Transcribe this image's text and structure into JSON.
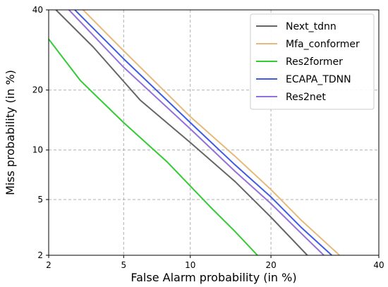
{
  "chart_data": {
    "type": "line",
    "title": "",
    "xlabel": "False Alarm probability (in %)",
    "ylabel": "Miss probability (in %)",
    "x_scale": "probit",
    "y_scale": "probit",
    "xlim": [
      2,
      40
    ],
    "ylim": [
      2,
      40
    ],
    "x_ticks": [
      2,
      5,
      10,
      20,
      40
    ],
    "y_ticks": [
      2,
      5,
      10,
      20,
      40
    ],
    "grid": true,
    "legend_position": "top-right",
    "series": [
      {
        "name": "Next_tdnn",
        "color": "#666666",
        "points": [
          [
            2.2,
            40
          ],
          [
            3.5,
            30
          ],
          [
            6.0,
            18
          ],
          [
            10.0,
            11
          ],
          [
            15.0,
            6.5
          ],
          [
            20.0,
            3.8
          ],
          [
            26.0,
            2
          ]
        ]
      },
      {
        "name": "Mfa_conformer",
        "color": "#e6b97d",
        "points": [
          [
            3.1,
            40
          ],
          [
            5.0,
            29
          ],
          [
            10.0,
            15
          ],
          [
            15.0,
            9.2
          ],
          [
            20.0,
            5.8
          ],
          [
            25.0,
            3.6
          ],
          [
            32.0,
            2
          ]
        ]
      },
      {
        "name": "Res2former",
        "color": "#33cc33",
        "points": [
          [
            2.0,
            32
          ],
          [
            3.0,
            22
          ],
          [
            5.0,
            14
          ],
          [
            8.0,
            8.5
          ],
          [
            12.0,
            4.5
          ],
          [
            15.0,
            3
          ],
          [
            18.0,
            2
          ]
        ]
      },
      {
        "name": "ECAPA_TDNN",
        "color": "#3d5ce5",
        "points": [
          [
            2.8,
            40
          ],
          [
            5.0,
            27
          ],
          [
            10.0,
            14
          ],
          [
            15.0,
            8.2
          ],
          [
            20.0,
            5.2
          ],
          [
            25.0,
            3.2
          ],
          [
            30.5,
            2
          ]
        ]
      },
      {
        "name": "Res2net",
        "color": "#9370db",
        "points": [
          [
            2.6,
            40
          ],
          [
            5.0,
            25
          ],
          [
            10.0,
            13
          ],
          [
            15.0,
            7.5
          ],
          [
            20.0,
            4.7
          ],
          [
            25.0,
            2.9
          ],
          [
            29.0,
            2
          ]
        ]
      }
    ]
  }
}
